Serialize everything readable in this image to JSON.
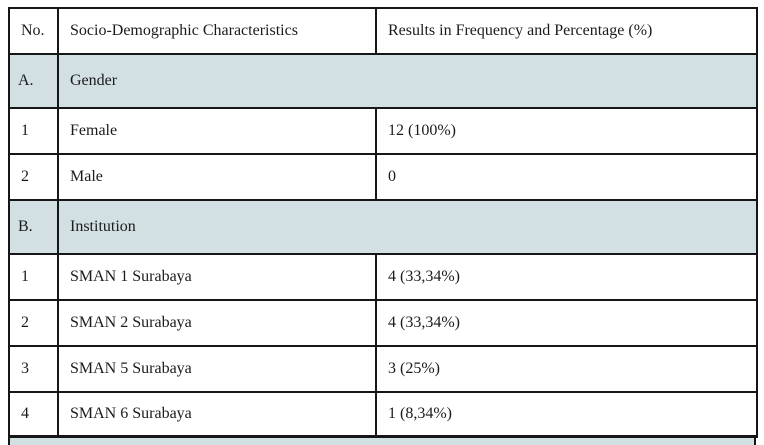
{
  "table": {
    "columns": [
      "No.",
      "Socio-Demographic Characteristics",
      "Results in Frequency and Percentage (%)"
    ],
    "rows": [
      {
        "type": "section",
        "no": "A.",
        "label": "Gender",
        "result": ""
      },
      {
        "type": "data",
        "no": "1",
        "label": "Female",
        "result": "12 (100%)"
      },
      {
        "type": "data",
        "no": "2",
        "label": "Male",
        "result": "0"
      },
      {
        "type": "section",
        "no": "B.",
        "label": "Institution",
        "result": ""
      },
      {
        "type": "data",
        "no": "1",
        "label": "SMAN 1 Surabaya",
        "result": "4 (33,34%)"
      },
      {
        "type": "data",
        "no": "2",
        "label": "SMAN 2 Surabaya",
        "result": "4 (33,34%)"
      },
      {
        "type": "data",
        "no": "3",
        "label": "SMAN 5 Surabaya",
        "result": "3 (25%)"
      },
      {
        "type": "data",
        "no": "4",
        "label": "SMAN 6 Surabaya",
        "result": "1 (8,34%)"
      }
    ],
    "colors": {
      "section_background": "#d2dfe3",
      "border": "#161616",
      "text": "#1b1b1b",
      "page_background": "#ffffff"
    }
  }
}
